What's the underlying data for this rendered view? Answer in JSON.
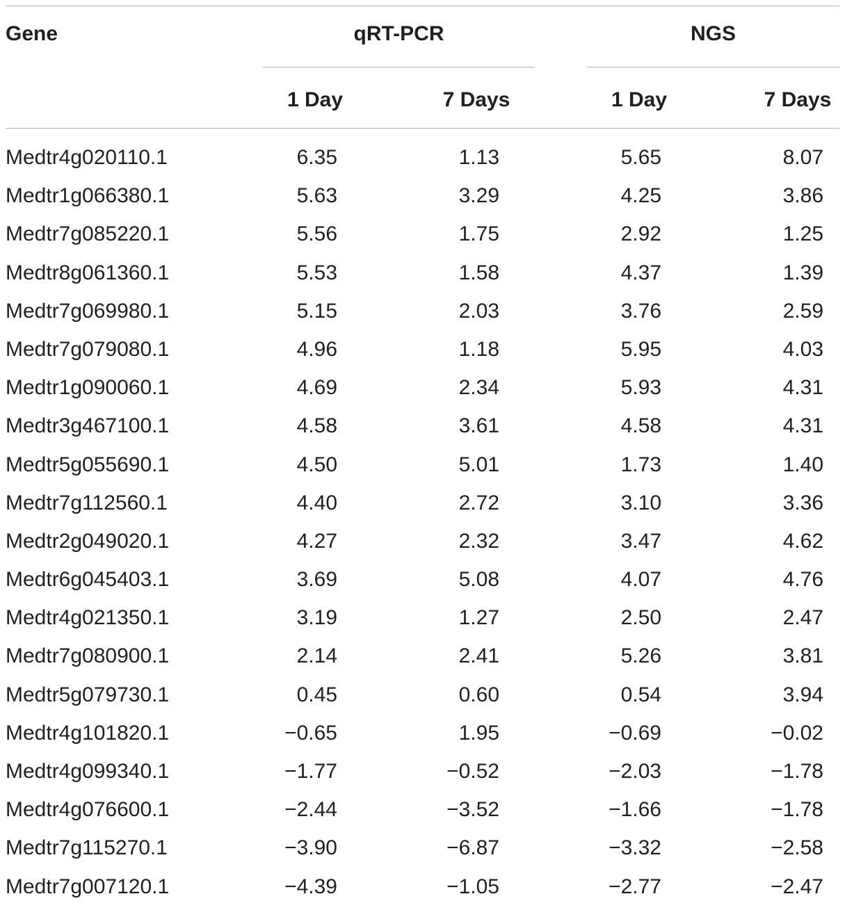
{
  "header": {
    "gene": "Gene",
    "qrt_pcr": "qRT-PCR",
    "ngs": "NGS",
    "qrt_day1": "1 Day",
    "qrt_day7": "7 Days",
    "ngs_day1": "1 Day",
    "ngs_day7": "7 Days"
  },
  "rows": [
    {
      "gene": "Medtr4g020110.1",
      "q1": "6.35",
      "q7": "1.13",
      "n1": "5.65",
      "n7": "8.07"
    },
    {
      "gene": "Medtr1g066380.1",
      "q1": "5.63",
      "q7": "3.29",
      "n1": "4.25",
      "n7": "3.86"
    },
    {
      "gene": "Medtr7g085220.1",
      "q1": "5.56",
      "q7": "1.75",
      "n1": "2.92",
      "n7": "1.25"
    },
    {
      "gene": "Medtr8g061360.1",
      "q1": "5.53",
      "q7": "1.58",
      "n1": "4.37",
      "n7": "1.39"
    },
    {
      "gene": "Medtr7g069980.1",
      "q1": "5.15",
      "q7": "2.03",
      "n1": "3.76",
      "n7": "2.59"
    },
    {
      "gene": "Medtr7g079080.1",
      "q1": "4.96",
      "q7": "1.18",
      "n1": "5.95",
      "n7": "4.03"
    },
    {
      "gene": "Medtr1g090060.1",
      "q1": "4.69",
      "q7": "2.34",
      "n1": "5.93",
      "n7": "4.31"
    },
    {
      "gene": "Medtr3g467100.1",
      "q1": "4.58",
      "q7": "3.61",
      "n1": "4.58",
      "n7": "4.31"
    },
    {
      "gene": "Medtr5g055690.1",
      "q1": "4.50",
      "q7": "5.01",
      "n1": "1.73",
      "n7": "1.40"
    },
    {
      "gene": "Medtr7g112560.1",
      "q1": "4.40",
      "q7": "2.72",
      "n1": "3.10",
      "n7": "3.36"
    },
    {
      "gene": "Medtr2g049020.1",
      "q1": "4.27",
      "q7": "2.32",
      "n1": "3.47",
      "n7": "4.62"
    },
    {
      "gene": "Medtr6g045403.1",
      "q1": "3.69",
      "q7": "5.08",
      "n1": "4.07",
      "n7": "4.76"
    },
    {
      "gene": "Medtr4g021350.1",
      "q1": "3.19",
      "q7": "1.27",
      "n1": "2.50",
      "n7": "2.47"
    },
    {
      "gene": "Medtr7g080900.1",
      "q1": "2.14",
      "q7": "2.41",
      "n1": "5.26",
      "n7": "3.81"
    },
    {
      "gene": "Medtr5g079730.1",
      "q1": "0.45",
      "q7": "0.60",
      "n1": "0.54",
      "n7": "3.94"
    },
    {
      "gene": "Medtr4g101820.1",
      "q1": "−0.65",
      "q7": "1.95",
      "n1": "−0.69",
      "n7": "−0.02"
    },
    {
      "gene": "Medtr4g099340.1",
      "q1": "−1.77",
      "q7": "−0.52",
      "n1": "−2.03",
      "n7": "−1.78"
    },
    {
      "gene": "Medtr4g076600.1",
      "q1": "−2.44",
      "q7": "−3.52",
      "n1": "−1.66",
      "n7": "−1.78"
    },
    {
      "gene": "Medtr7g115270.1",
      "q1": "−3.90",
      "q7": "−6.87",
      "n1": "−3.32",
      "n7": "−2.58"
    },
    {
      "gene": "Medtr7g007120.1",
      "q1": "−4.39",
      "q7": "−1.05",
      "n1": "−2.77",
      "n7": "−2.47"
    }
  ]
}
